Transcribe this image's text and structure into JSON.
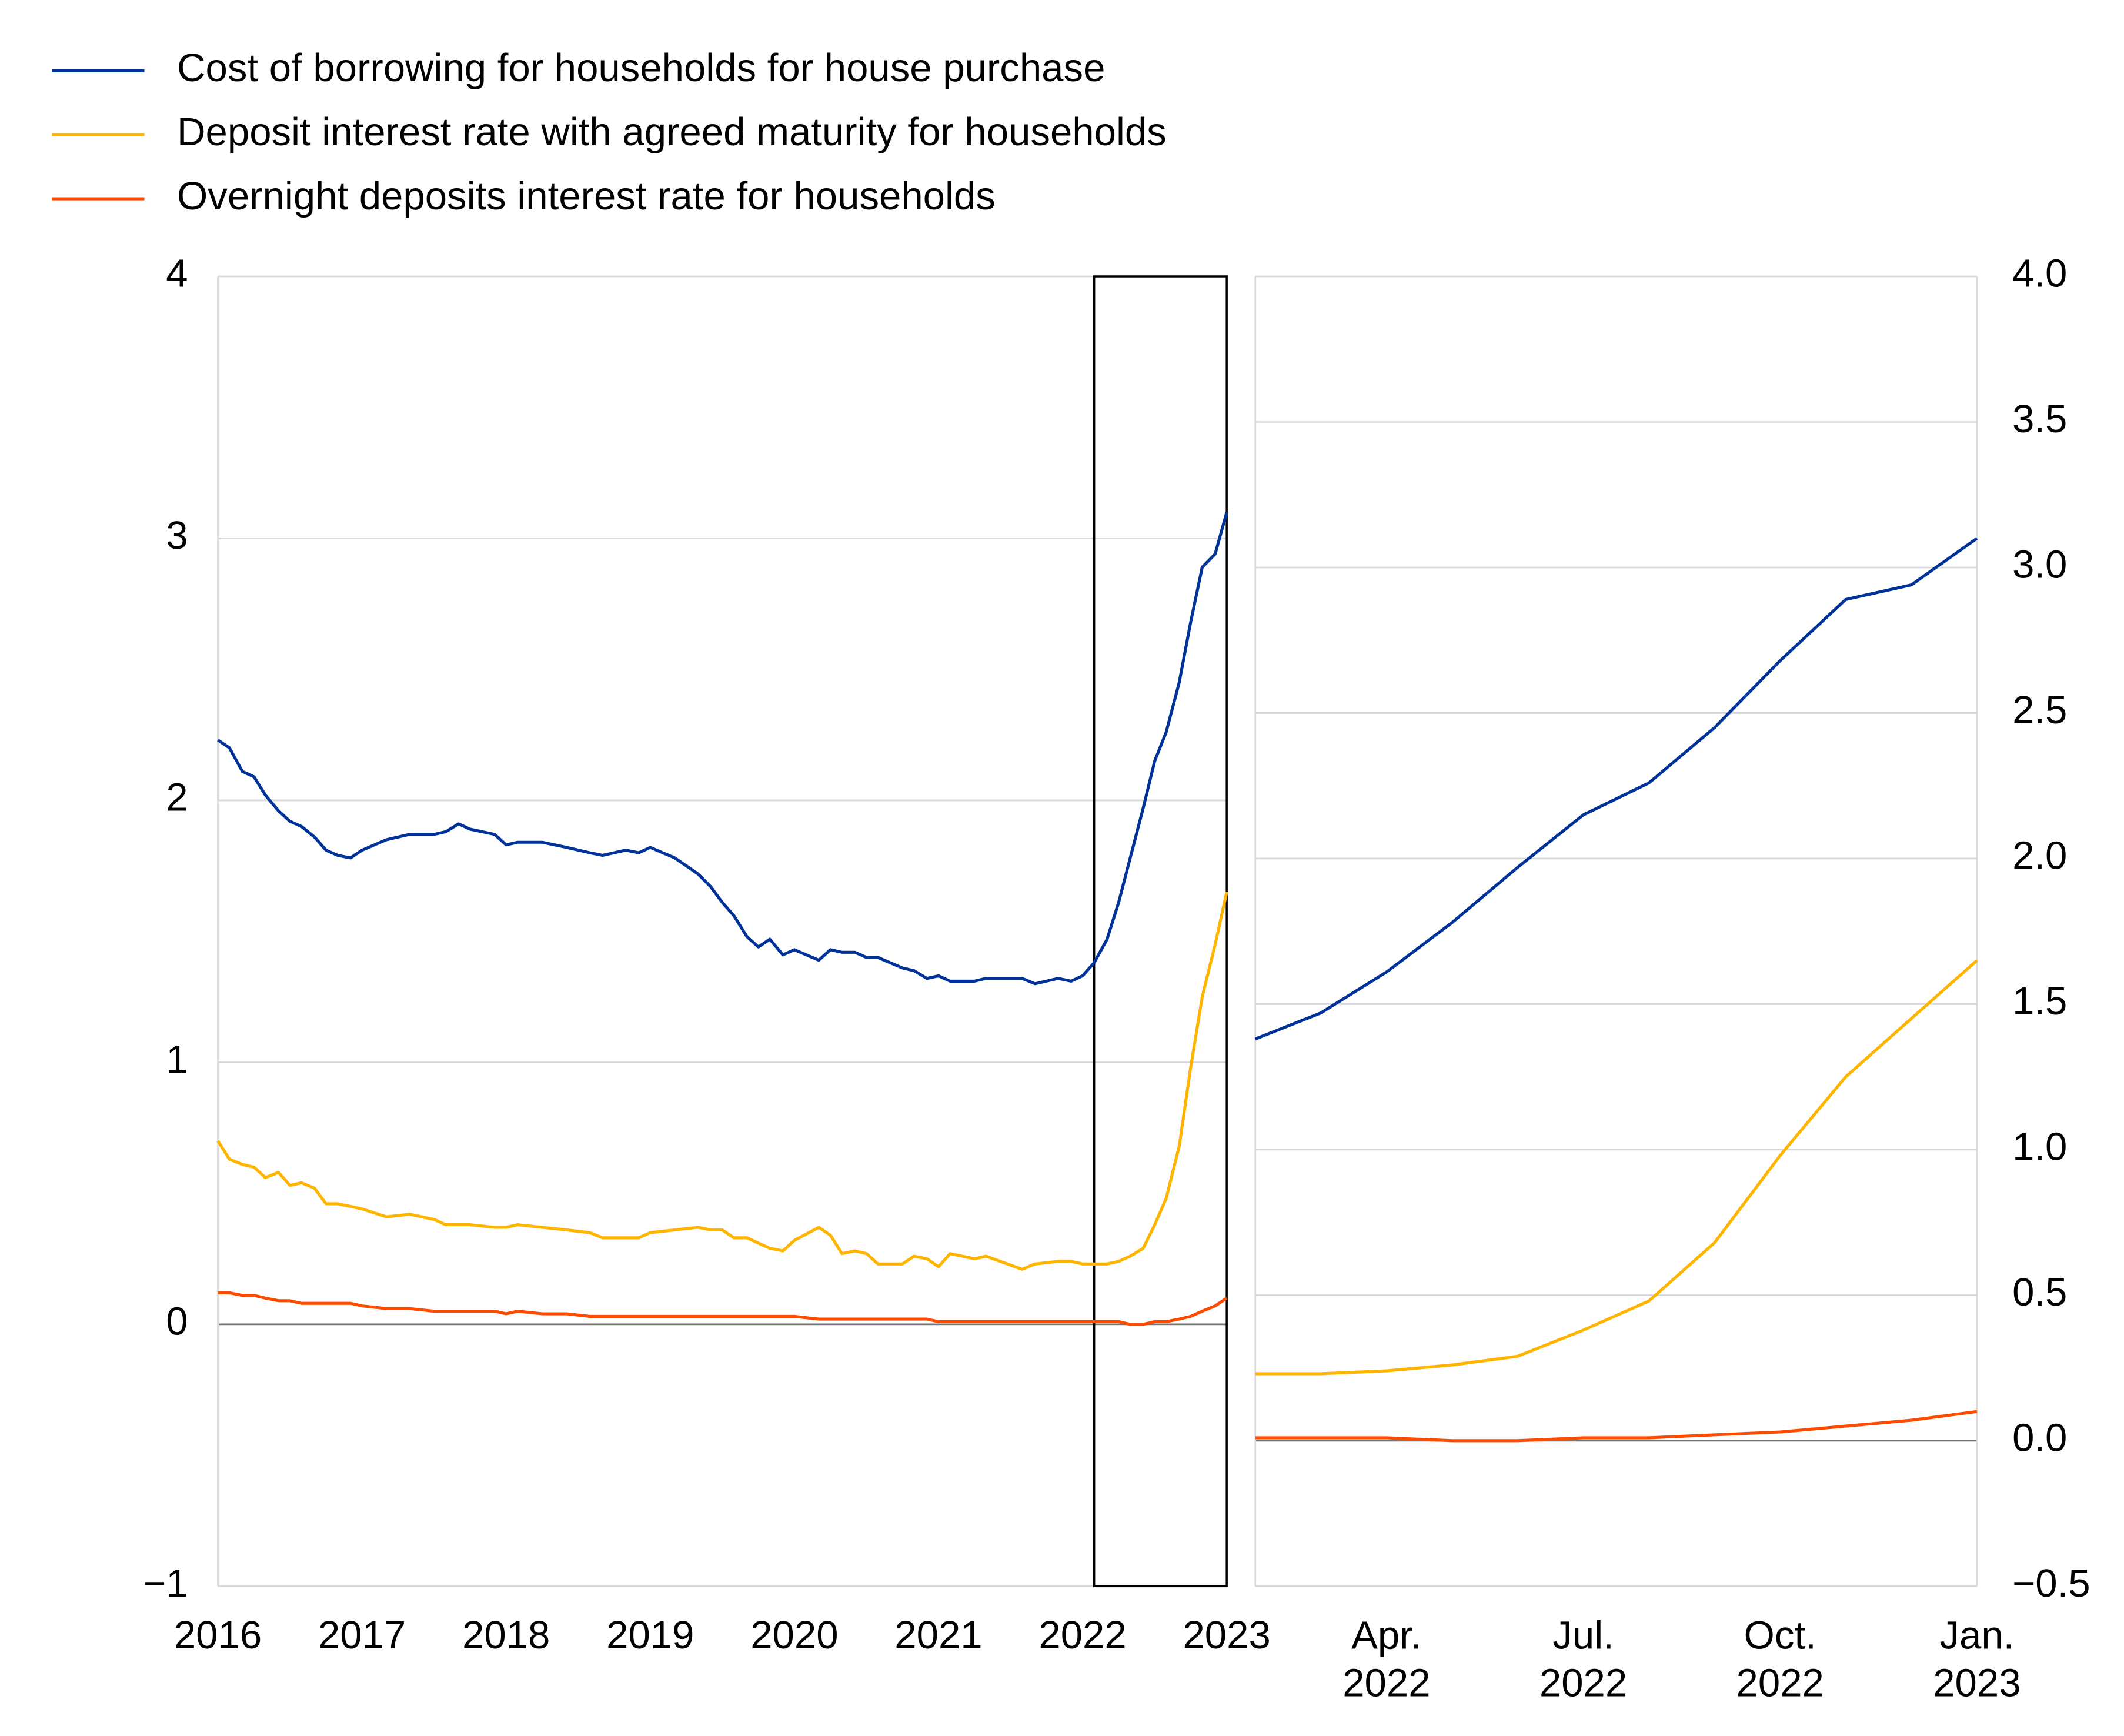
{
  "chart_data": [
    {
      "type": "line",
      "x": [
        2016.0,
        2016.08,
        2016.17,
        2016.25,
        2016.33,
        2016.42,
        2016.5,
        2016.58,
        2016.67,
        2016.75,
        2016.83,
        2016.92,
        2017.0,
        2017.17,
        2017.33,
        2017.5,
        2017.58,
        2017.67,
        2017.75,
        2017.92,
        2018.0,
        2018.08,
        2018.25,
        2018.42,
        2018.58,
        2018.67,
        2018.83,
        2018.92,
        2019.0,
        2019.17,
        2019.33,
        2019.42,
        2019.5,
        2019.58,
        2019.67,
        2019.75,
        2019.83,
        2019.92,
        2020.0,
        2020.17,
        2020.25,
        2020.33,
        2020.42,
        2020.5,
        2020.58,
        2020.75,
        2020.83,
        2020.92,
        2021.0,
        2021.08,
        2021.25,
        2021.33,
        2021.58,
        2021.67,
        2021.83,
        2021.92,
        2022.0,
        2022.08,
        2022.17,
        2022.25,
        2022.33,
        2022.42,
        2022.5,
        2022.58,
        2022.67,
        2022.75,
        2022.83,
        2022.92,
        2023.0
      ],
      "series": [
        {
          "name": "Cost of borrowing for households for house purchase",
          "color": "#003299",
          "values": [
            2.23,
            2.2,
            2.11,
            2.09,
            2.02,
            1.96,
            1.92,
            1.9,
            1.86,
            1.81,
            1.79,
            1.78,
            1.81,
            1.85,
            1.87,
            1.87,
            1.88,
            1.91,
            1.89,
            1.87,
            1.83,
            1.84,
            1.84,
            1.82,
            1.8,
            1.79,
            1.81,
            1.8,
            1.82,
            1.78,
            1.72,
            1.67,
            1.61,
            1.56,
            1.48,
            1.44,
            1.47,
            1.41,
            1.43,
            1.39,
            1.43,
            1.42,
            1.42,
            1.4,
            1.4,
            1.36,
            1.35,
            1.32,
            1.33,
            1.31,
            1.31,
            1.32,
            1.32,
            1.3,
            1.32,
            1.31,
            1.33,
            1.38,
            1.47,
            1.61,
            1.78,
            1.97,
            2.15,
            2.26,
            2.45,
            2.68,
            2.89,
            2.94,
            3.1
          ]
        },
        {
          "name": "Deposit interest rate with agreed maturity for households",
          "color": "#ffb400",
          "values": [
            0.7,
            0.63,
            0.61,
            0.6,
            0.56,
            0.58,
            0.53,
            0.54,
            0.52,
            0.46,
            0.46,
            0.45,
            0.44,
            0.41,
            0.42,
            0.4,
            0.38,
            0.38,
            0.38,
            0.37,
            0.37,
            0.38,
            0.37,
            0.36,
            0.35,
            0.33,
            0.33,
            0.33,
            0.35,
            0.36,
            0.37,
            0.36,
            0.36,
            0.33,
            0.33,
            0.31,
            0.29,
            0.28,
            0.32,
            0.37,
            0.34,
            0.27,
            0.28,
            0.27,
            0.23,
            0.23,
            0.26,
            0.25,
            0.22,
            0.27,
            0.25,
            0.26,
            0.21,
            0.23,
            0.24,
            0.24,
            0.23,
            0.23,
            0.23,
            0.24,
            0.26,
            0.29,
            0.38,
            0.48,
            0.68,
            0.98,
            1.25,
            1.45,
            1.65
          ]
        },
        {
          "name": "Overnight deposits interest rate for households",
          "color": "#ff4b00",
          "values": [
            0.12,
            0.12,
            0.11,
            0.11,
            0.1,
            0.09,
            0.09,
            0.08,
            0.08,
            0.08,
            0.08,
            0.08,
            0.07,
            0.06,
            0.06,
            0.05,
            0.05,
            0.05,
            0.05,
            0.05,
            0.04,
            0.05,
            0.04,
            0.04,
            0.03,
            0.03,
            0.03,
            0.03,
            0.03,
            0.03,
            0.03,
            0.03,
            0.03,
            0.03,
            0.03,
            0.03,
            0.03,
            0.03,
            0.03,
            0.02,
            0.02,
            0.02,
            0.02,
            0.02,
            0.02,
            0.02,
            0.02,
            0.02,
            0.01,
            0.01,
            0.01,
            0.01,
            0.01,
            0.01,
            0.01,
            0.01,
            0.01,
            0.01,
            0.01,
            0.01,
            0.0,
            0.0,
            0.01,
            0.01,
            0.02,
            0.03,
            0.05,
            0.07,
            0.1
          ]
        }
      ],
      "xlim": [
        2016,
        2023
      ],
      "xticks": [
        2016,
        2017,
        2018,
        2019,
        2020,
        2021,
        2022,
        2023
      ],
      "ylim": [
        -1,
        4
      ],
      "yticks": [
        {
          "value": -1,
          "label": "−1"
        },
        0,
        1,
        2,
        3,
        4
      ],
      "zoom_range": [
        2022.08,
        2023.0
      ],
      "grid": true,
      "legend": "top-left"
    },
    {
      "type": "line",
      "categories": [
        null,
        null,
        "Apr. 2022",
        null,
        null,
        "Jul. 2022",
        null,
        null,
        "Oct. 2022",
        null,
        null,
        "Jan. 2023"
      ],
      "series": [
        {
          "color": "#003299",
          "values": [
            1.38,
            1.47,
            1.61,
            1.78,
            1.97,
            2.15,
            2.26,
            2.45,
            2.68,
            2.89,
            2.94,
            3.1
          ]
        },
        {
          "color": "#ffb400",
          "values": [
            0.23,
            0.23,
            0.24,
            0.26,
            0.29,
            0.38,
            0.48,
            0.68,
            0.98,
            1.25,
            1.45,
            1.65
          ]
        },
        {
          "color": "#ff4b00",
          "values": [
            0.01,
            0.01,
            0.01,
            0.0,
            0.0,
            0.01,
            0.01,
            0.02,
            0.03,
            0.05,
            0.07,
            0.1
          ]
        }
      ],
      "ylim": [
        -0.5,
        4.0
      ],
      "yticks": [
        {
          "value": -0.5,
          "label": "−0.5"
        },
        {
          "value": 0,
          "label": "0.0"
        },
        0.5,
        {
          "value": 1,
          "label": "1.0"
        },
        1.5,
        {
          "value": 2,
          "label": "2.0"
        },
        2.5,
        {
          "value": 3,
          "label": "3.0"
        },
        3.5,
        {
          "value": 4,
          "label": "4.0"
        }
      ],
      "grid": true
    }
  ]
}
